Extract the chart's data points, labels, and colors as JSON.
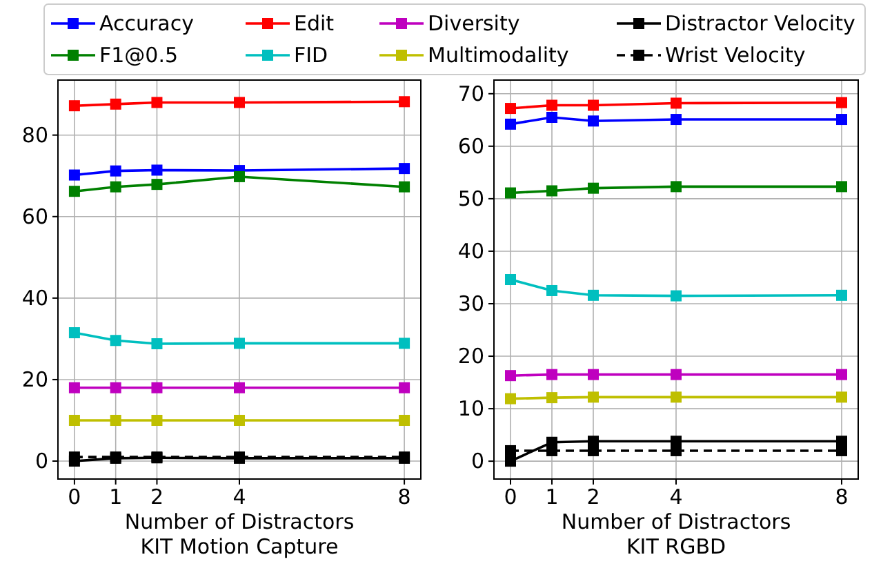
{
  "chart_data": [
    {
      "type": "line",
      "title": "KIT Motion Capture",
      "xlabel": "Number of Distractors",
      "x": [
        0,
        1,
        2,
        4,
        8
      ],
      "xlim": [
        -0.4,
        8.4
      ],
      "xticks": [
        0,
        1,
        2,
        4,
        8
      ],
      "ylim": [
        -4.4,
        93.5
      ],
      "yticks": [
        0,
        20,
        40,
        60,
        80
      ],
      "grid": true,
      "legend": "top",
      "marker": "square",
      "series": [
        {
          "name": "Accuracy",
          "color": "#0000ff",
          "values": [
            70.2,
            71.2,
            71.4,
            71.3,
            71.8
          ]
        },
        {
          "name": "F1@0.5",
          "color": "#008000",
          "values": [
            66.2,
            67.3,
            67.9,
            69.8,
            67.3
          ]
        },
        {
          "name": "Edit",
          "color": "#ff0000",
          "values": [
            87.2,
            87.6,
            88,
            88,
            88.2
          ]
        },
        {
          "name": "FID",
          "color": "#00bfbf",
          "values": [
            31.5,
            29.6,
            28.8,
            28.9,
            28.9
          ]
        },
        {
          "name": "Diversity",
          "color": "#bf00bf",
          "values": [
            18,
            18,
            18,
            18,
            18
          ]
        },
        {
          "name": "Multimodality",
          "color": "#bfbf00",
          "values": [
            10,
            10,
            10,
            10,
            10
          ]
        },
        {
          "name": "Distractor Velocity",
          "color": "#000000",
          "values": [
            0,
            0.7,
            0.8,
            0.7,
            0.7
          ]
        },
        {
          "name": "Wrist Velocity",
          "color": "#000000",
          "line_style": "dashed",
          "values": [
            1,
            1,
            1,
            1,
            1
          ]
        }
      ]
    },
    {
      "type": "line",
      "title": "KIT RGBD",
      "xlabel": "Number of Distractors",
      "x": [
        0,
        1,
        2,
        4,
        8
      ],
      "xlim": [
        -0.4,
        8.4
      ],
      "xticks": [
        0,
        1,
        2,
        4,
        8
      ],
      "ylim": [
        -3.4,
        72.6
      ],
      "yticks": [
        0,
        10,
        20,
        30,
        40,
        50,
        60,
        70
      ],
      "grid": true,
      "legend": "top",
      "marker": "square",
      "series": [
        {
          "name": "Accuracy",
          "color": "#0000ff",
          "values": [
            64.2,
            65.5,
            64.8,
            65.1,
            65.1
          ]
        },
        {
          "name": "F1@0.5",
          "color": "#008000",
          "values": [
            51.1,
            51.5,
            52,
            52.3,
            52.3
          ]
        },
        {
          "name": "Edit",
          "color": "#ff0000",
          "values": [
            67.2,
            67.8,
            67.8,
            68.2,
            68.3
          ]
        },
        {
          "name": "FID",
          "color": "#00bfbf",
          "values": [
            34.6,
            32.5,
            31.6,
            31.5,
            31.6
          ]
        },
        {
          "name": "Diversity",
          "color": "#bf00bf",
          "values": [
            16.3,
            16.5,
            16.5,
            16.5,
            16.5
          ]
        },
        {
          "name": "Multimodality",
          "color": "#bfbf00",
          "values": [
            11.9,
            12.1,
            12.2,
            12.2,
            12.2
          ]
        },
        {
          "name": "Distractor Velocity",
          "color": "#000000",
          "values": [
            0,
            3.6,
            3.8,
            3.8,
            3.8
          ]
        },
        {
          "name": "Wrist Velocity",
          "color": "#000000",
          "line_style": "dashed",
          "values": [
            2,
            2,
            2,
            2,
            2
          ]
        }
      ]
    }
  ]
}
